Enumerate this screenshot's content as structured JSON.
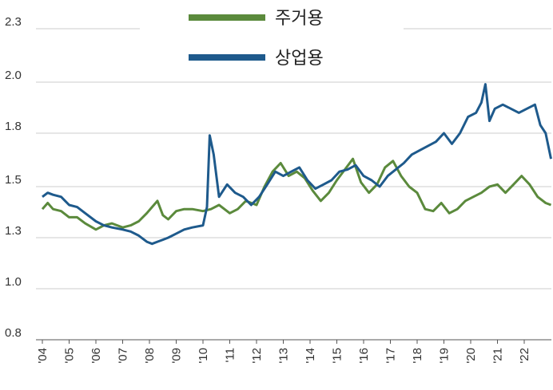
{
  "chart_data": {
    "type": "line",
    "y_ticks": [
      "0.8",
      "1.0",
      "1.3",
      "1.5",
      "1.8",
      "2.0",
      "2.3"
    ],
    "ylim": [
      0.8,
      2.3
    ],
    "x_ticks": [
      "'04",
      "'05",
      "'06",
      "'07",
      "'08",
      "'09",
      "'10",
      "'11",
      "'12",
      "'13",
      "'14",
      "'15",
      "'16",
      "'17",
      "'18",
      "'19",
      "'20",
      "'21",
      "'22"
    ],
    "grid": "horizontal",
    "legend_position": "top-center",
    "series": [
      {
        "name": "주거용",
        "color": "#5b8a3c",
        "x": [
          2004.0,
          2004.2,
          2004.4,
          2004.7,
          2005.0,
          2005.3,
          2005.6,
          2006.0,
          2006.3,
          2006.6,
          2007.0,
          2007.3,
          2007.6,
          2007.9,
          2008.1,
          2008.3,
          2008.5,
          2008.7,
          2009.0,
          2009.3,
          2009.6,
          2010.0,
          2010.3,
          2010.6,
          2011.0,
          2011.3,
          2011.6,
          2012.0,
          2012.3,
          2012.6,
          2012.9,
          2013.2,
          2013.5,
          2013.8,
          2014.1,
          2014.4,
          2014.7,
          2015.0,
          2015.3,
          2015.6,
          2015.9,
          2016.2,
          2016.5,
          2016.8,
          2017.1,
          2017.4,
          2017.7,
          2018.0,
          2018.3,
          2018.6,
          2018.9,
          2019.2,
          2019.5,
          2019.8,
          2020.1,
          2020.4,
          2020.7,
          2021.0,
          2021.3,
          2021.6,
          2021.9,
          2022.2,
          2022.5,
          2022.8,
          2023.0
        ],
        "values": [
          1.44,
          1.47,
          1.44,
          1.43,
          1.4,
          1.4,
          1.37,
          1.34,
          1.36,
          1.37,
          1.35,
          1.36,
          1.38,
          1.42,
          1.45,
          1.48,
          1.41,
          1.39,
          1.43,
          1.44,
          1.44,
          1.43,
          1.44,
          1.46,
          1.42,
          1.44,
          1.48,
          1.46,
          1.55,
          1.62,
          1.66,
          1.6,
          1.62,
          1.59,
          1.53,
          1.48,
          1.52,
          1.58,
          1.63,
          1.68,
          1.57,
          1.52,
          1.56,
          1.64,
          1.67,
          1.6,
          1.55,
          1.52,
          1.44,
          1.43,
          1.47,
          1.42,
          1.44,
          1.48,
          1.5,
          1.52,
          1.55,
          1.56,
          1.52,
          1.56,
          1.6,
          1.56,
          1.5,
          1.47,
          1.46
        ]
      },
      {
        "name": "상업용",
        "color": "#1e5a8c",
        "x": [
          2004.0,
          2004.2,
          2004.4,
          2004.7,
          2005.0,
          2005.3,
          2005.6,
          2006.0,
          2006.3,
          2006.6,
          2007.0,
          2007.3,
          2007.6,
          2007.9,
          2008.1,
          2008.3,
          2008.5,
          2008.7,
          2009.0,
          2009.3,
          2009.6,
          2010.0,
          2010.15,
          2010.25,
          2010.4,
          2010.6,
          2010.9,
          2011.2,
          2011.5,
          2011.8,
          2012.1,
          2012.4,
          2012.7,
          2013.0,
          2013.3,
          2013.6,
          2013.9,
          2014.2,
          2014.5,
          2014.8,
          2015.1,
          2015.4,
          2015.7,
          2016.0,
          2016.3,
          2016.6,
          2016.9,
          2017.2,
          2017.5,
          2017.8,
          2018.1,
          2018.4,
          2018.7,
          2019.0,
          2019.3,
          2019.6,
          2019.9,
          2020.2,
          2020.4,
          2020.55,
          2020.7,
          2020.9,
          2021.2,
          2021.5,
          2021.8,
          2022.1,
          2022.4,
          2022.6,
          2022.8,
          2023.0
        ],
        "values": [
          1.5,
          1.52,
          1.51,
          1.5,
          1.46,
          1.45,
          1.42,
          1.38,
          1.36,
          1.35,
          1.34,
          1.33,
          1.31,
          1.28,
          1.27,
          1.28,
          1.29,
          1.3,
          1.32,
          1.34,
          1.35,
          1.36,
          1.45,
          1.79,
          1.7,
          1.5,
          1.56,
          1.52,
          1.5,
          1.46,
          1.5,
          1.56,
          1.62,
          1.6,
          1.62,
          1.64,
          1.58,
          1.54,
          1.56,
          1.58,
          1.62,
          1.63,
          1.65,
          1.6,
          1.58,
          1.55,
          1.6,
          1.63,
          1.66,
          1.7,
          1.72,
          1.74,
          1.76,
          1.8,
          1.75,
          1.8,
          1.88,
          1.9,
          1.95,
          2.04,
          1.86,
          1.92,
          1.94,
          1.92,
          1.9,
          1.92,
          1.94,
          1.84,
          1.8,
          1.68
        ]
      }
    ]
  }
}
